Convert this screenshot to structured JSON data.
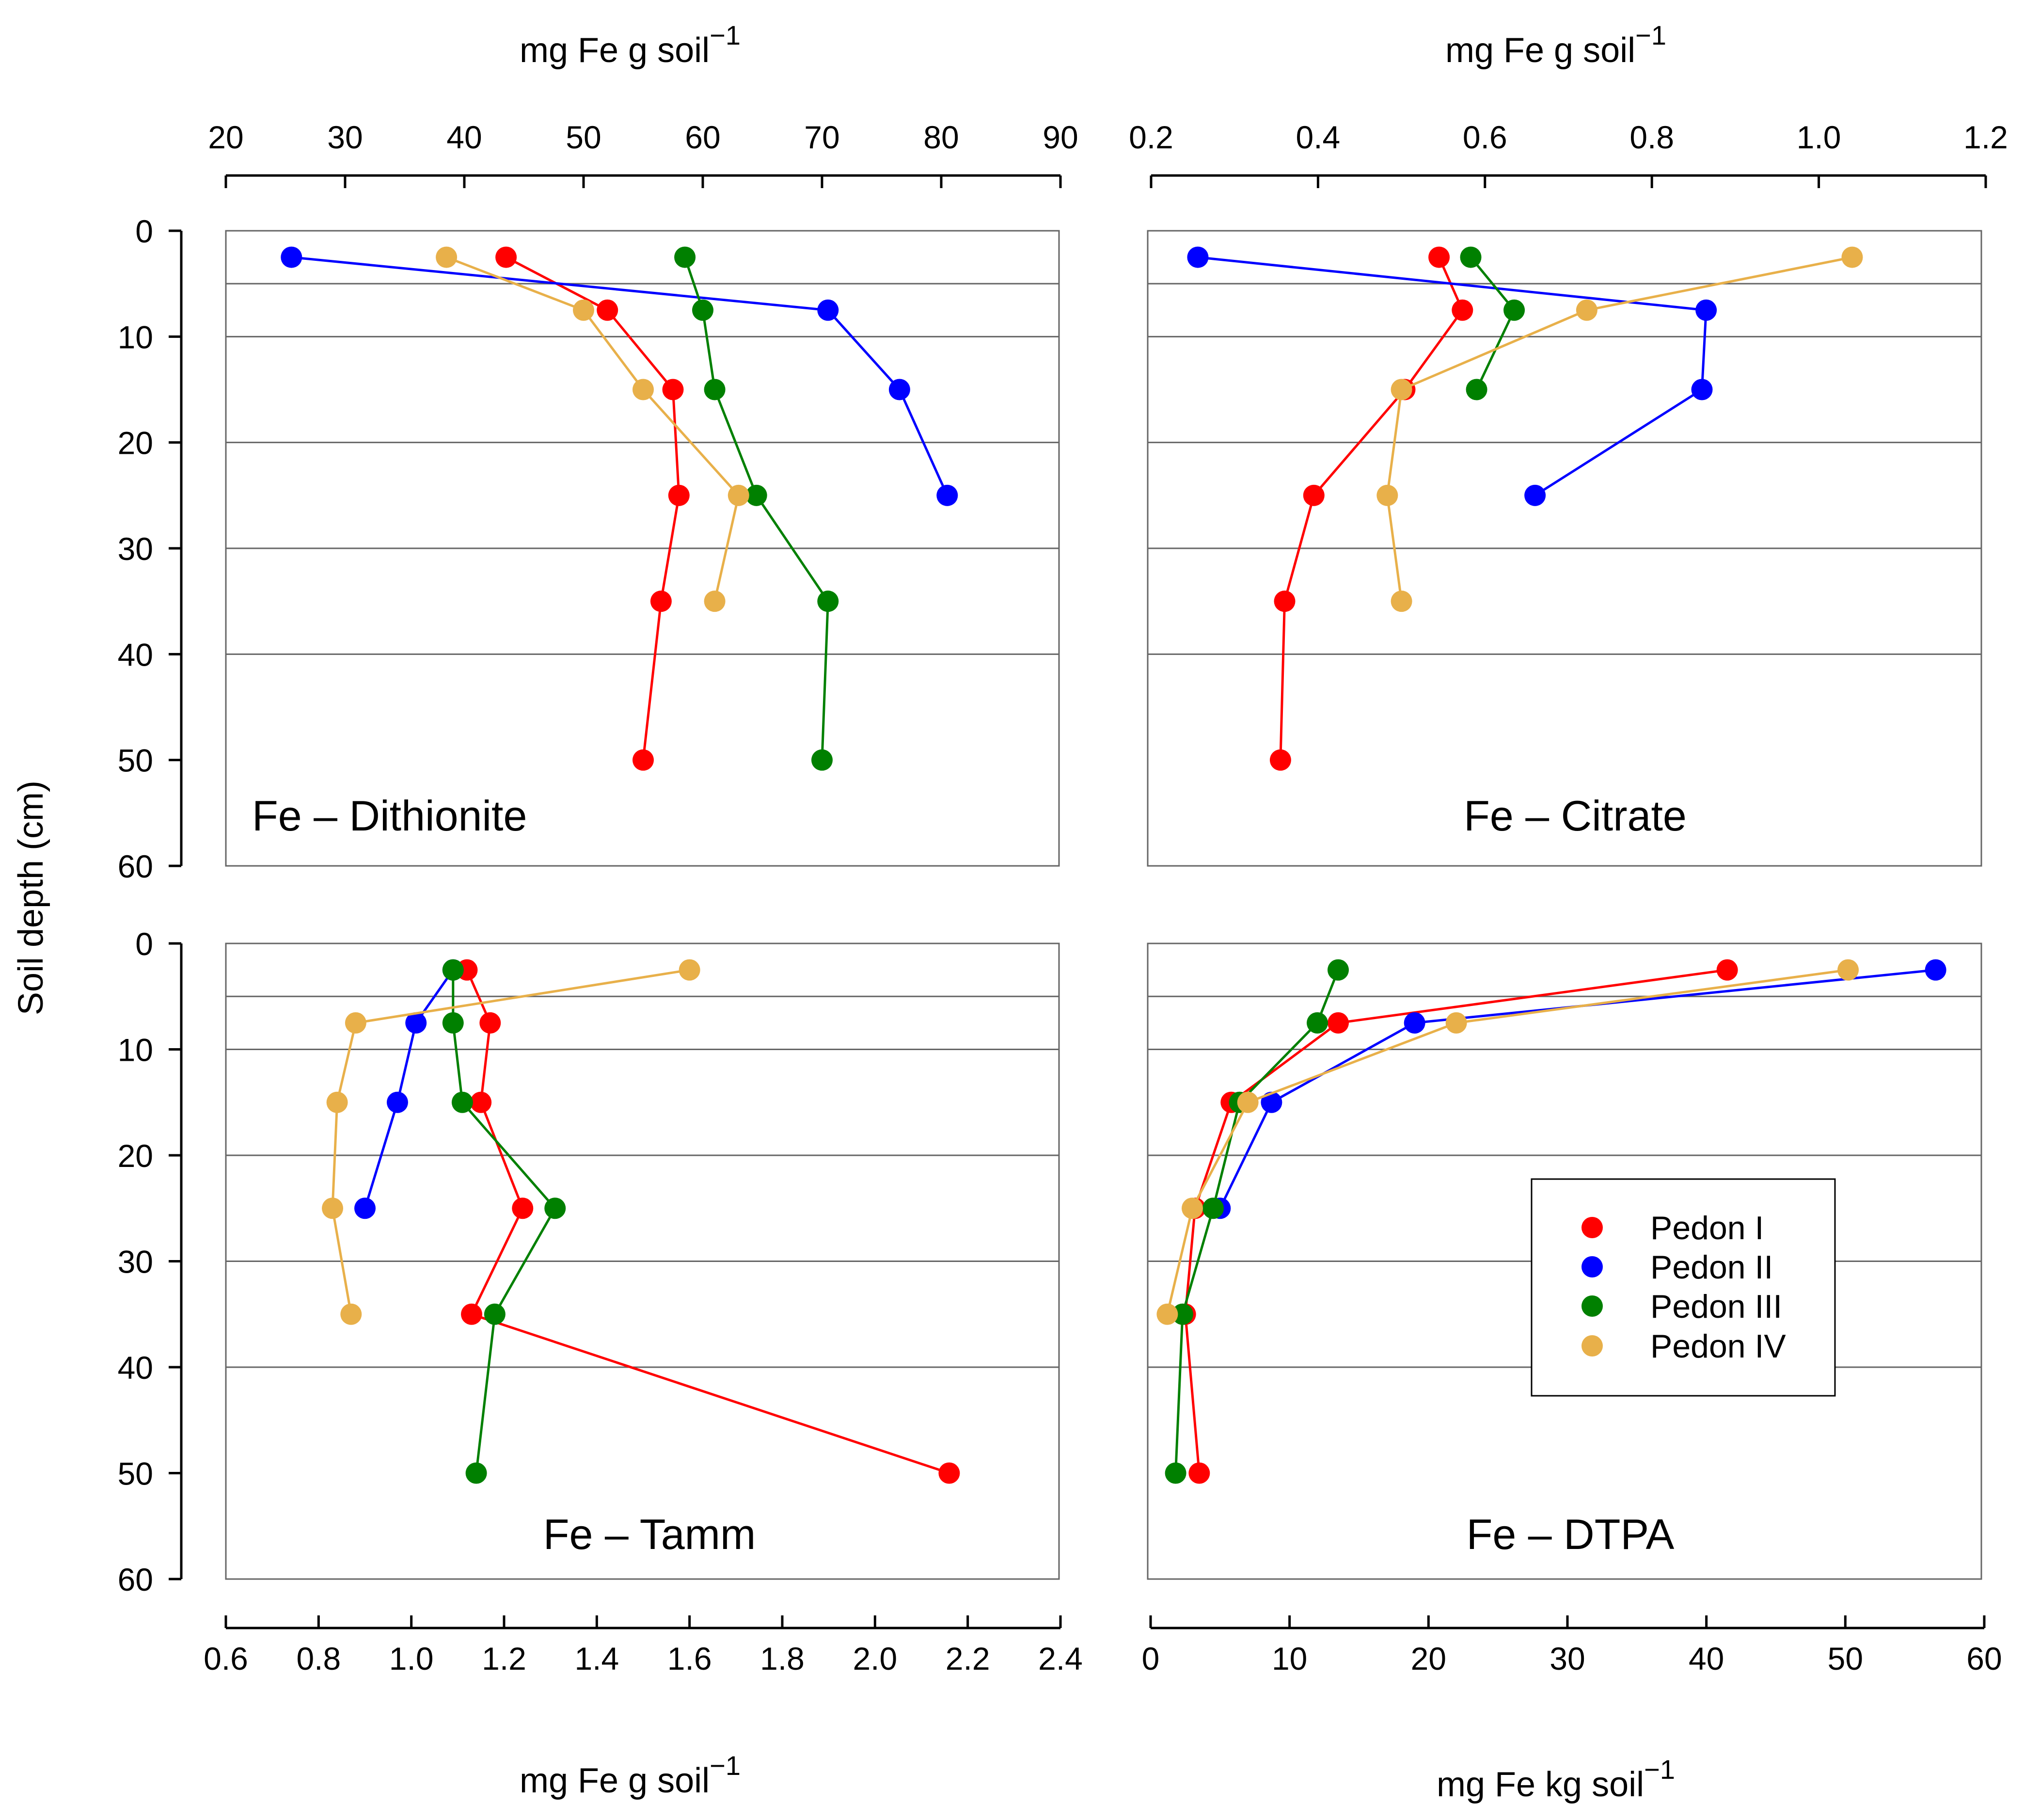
{
  "figure": {
    "y_axis_label": "Soil depth (cm)",
    "depth_ticks": [
      "0",
      "10",
      "20",
      "30",
      "40",
      "50",
      "60"
    ],
    "horizon_boundaries_cm": [
      5,
      10,
      20,
      30,
      40
    ]
  },
  "axes": {
    "top_left": {
      "label": "mg Fe g soil",
      "sup": "−1",
      "ticks": [
        "20",
        "30",
        "40",
        "50",
        "60",
        "70",
        "80",
        "90"
      ]
    },
    "top_right": {
      "label": "mg Fe g soil",
      "sup": "−1",
      "ticks": [
        "0.2",
        "0.4",
        "0.6",
        "0.8",
        "1.0",
        "1.2"
      ]
    },
    "bottom_left": {
      "label": "mg Fe g soil",
      "sup": "−1",
      "ticks": [
        "0.6",
        "0.8",
        "1.0",
        "1.2",
        "1.4",
        "1.6",
        "1.8",
        "2.0",
        "2.2",
        "2.4"
      ]
    },
    "bottom_right": {
      "label": "mg Fe kg soil",
      "sup": "−1",
      "ticks": [
        "0",
        "10",
        "20",
        "30",
        "40",
        "50",
        "60"
      ]
    }
  },
  "legend": {
    "position": "lower-right of Fe – DTPA panel",
    "entries": [
      {
        "name": "Pedon I",
        "color": "#ff0000"
      },
      {
        "name": "Pedon II",
        "color": "#0000ff"
      },
      {
        "name": "Pedon III",
        "color": "#008000"
      },
      {
        "name": "Pedon IV",
        "color": "#e8b04a"
      }
    ]
  },
  "chart_data": [
    {
      "type": "line",
      "title": "Fe – Dithionite",
      "xlabel": "mg Fe g soil−1",
      "ylabel": "Soil depth (cm)",
      "xlim": [
        20,
        90
      ],
      "ylim": [
        0,
        60
      ],
      "y_inverted": true,
      "series": [
        {
          "name": "Pedon I",
          "color": "#ff0000",
          "points": [
            [
              43.5,
              2.5
            ],
            [
              52,
              7.5
            ],
            [
              57.5,
              15
            ],
            [
              58,
              25
            ],
            [
              56.5,
              35
            ],
            [
              55,
              50
            ]
          ]
        },
        {
          "name": "Pedon II",
          "color": "#0000ff",
          "points": [
            [
              25.5,
              2.5
            ],
            [
              70.5,
              7.5
            ],
            [
              76.5,
              15
            ],
            [
              80.5,
              25
            ]
          ]
        },
        {
          "name": "Pedon III",
          "color": "#008000",
          "points": [
            [
              58.5,
              2.5
            ],
            [
              60,
              7.5
            ],
            [
              61,
              15
            ],
            [
              64.5,
              25
            ],
            [
              70.5,
              35
            ],
            [
              70,
              50
            ]
          ]
        },
        {
          "name": "Pedon IV",
          "color": "#e8b04a",
          "points": [
            [
              38.5,
              2.5
            ],
            [
              50,
              7.5
            ],
            [
              55,
              15
            ],
            [
              63,
              25
            ],
            [
              61,
              35
            ]
          ]
        }
      ]
    },
    {
      "type": "line",
      "title": "Fe – Citrate",
      "xlabel": "mg Fe g soil−1",
      "ylabel": "Soil depth (cm)",
      "xlim": [
        0.2,
        1.2
      ],
      "ylim": [
        0,
        60
      ],
      "y_inverted": true,
      "series": [
        {
          "name": "Pedon I",
          "color": "#ff0000",
          "points": [
            [
              0.545,
              2.5
            ],
            [
              0.573,
              7.5
            ],
            [
              0.504,
              15
            ],
            [
              0.395,
              25
            ],
            [
              0.36,
              35
            ],
            [
              0.355,
              50
            ]
          ]
        },
        {
          "name": "Pedon II",
          "color": "#0000ff",
          "points": [
            [
              0.256,
              2.5
            ],
            [
              0.865,
              7.5
            ],
            [
              0.86,
              15
            ],
            [
              0.66,
              25
            ]
          ]
        },
        {
          "name": "Pedon III",
          "color": "#008000",
          "points": [
            [
              0.583,
              2.5
            ],
            [
              0.635,
              7.5
            ],
            [
              0.59,
              15
            ]
          ]
        },
        {
          "name": "Pedon IV",
          "color": "#e8b04a",
          "points": [
            [
              1.04,
              2.5
            ],
            [
              0.722,
              7.5
            ],
            [
              0.5,
              15
            ],
            [
              0.483,
              25
            ],
            [
              0.5,
              35
            ]
          ]
        }
      ]
    },
    {
      "type": "line",
      "title": "Fe – Tamm",
      "xlabel": "mg Fe g soil−1",
      "ylabel": "Soil depth (cm)",
      "xlim": [
        0.6,
        2.4
      ],
      "ylim": [
        0,
        60
      ],
      "y_inverted": true,
      "series": [
        {
          "name": "Pedon I",
          "color": "#ff0000",
          "points": [
            [
              1.12,
              2.5
            ],
            [
              1.17,
              7.5
            ],
            [
              1.15,
              15
            ],
            [
              1.24,
              25
            ],
            [
              1.13,
              35
            ],
            [
              2.16,
              50
            ]
          ]
        },
        {
          "name": "Pedon II",
          "color": "#0000ff",
          "points": [
            [
              1.09,
              2.5
            ],
            [
              1.01,
              7.5
            ],
            [
              0.97,
              15
            ],
            [
              0.9,
              25
            ]
          ]
        },
        {
          "name": "Pedon III",
          "color": "#008000",
          "points": [
            [
              1.09,
              2.5
            ],
            [
              1.09,
              7.5
            ],
            [
              1.11,
              15
            ],
            [
              1.31,
              25
            ],
            [
              1.18,
              35
            ],
            [
              1.14,
              50
            ]
          ]
        },
        {
          "name": "Pedon IV",
          "color": "#e8b04a",
          "points": [
            [
              1.6,
              2.5
            ],
            [
              0.88,
              7.5
            ],
            [
              0.84,
              15
            ],
            [
              0.83,
              25
            ],
            [
              0.87,
              35
            ]
          ]
        }
      ]
    },
    {
      "type": "line",
      "title": "Fe – DTPA",
      "xlabel": "mg Fe kg soil−1",
      "ylabel": "Soil depth (cm)",
      "xlim": [
        0,
        60
      ],
      "ylim": [
        0,
        60
      ],
      "y_inverted": true,
      "series": [
        {
          "name": "Pedon I",
          "color": "#ff0000",
          "points": [
            [
              41.5,
              2.5
            ],
            [
              13.5,
              7.5
            ],
            [
              5.8,
              15
            ],
            [
              3.2,
              25
            ],
            [
              2.5,
              35
            ],
            [
              3.5,
              50
            ]
          ]
        },
        {
          "name": "Pedon II",
          "color": "#0000ff",
          "points": [
            [
              56.5,
              2.5
            ],
            [
              19,
              7.5
            ],
            [
              8.7,
              15
            ],
            [
              5,
              25
            ]
          ]
        },
        {
          "name": "Pedon III",
          "color": "#008000",
          "points": [
            [
              13.5,
              2.5
            ],
            [
              12,
              7.5
            ],
            [
              6.4,
              15
            ],
            [
              4.5,
              25
            ],
            [
              2.3,
              35
            ],
            [
              1.8,
              50
            ]
          ]
        },
        {
          "name": "Pedon IV",
          "color": "#e8b04a",
          "points": [
            [
              50.2,
              2.5
            ],
            [
              22,
              7.5
            ],
            [
              7,
              15
            ],
            [
              3,
              25
            ],
            [
              1.2,
              35
            ]
          ]
        }
      ]
    }
  ]
}
